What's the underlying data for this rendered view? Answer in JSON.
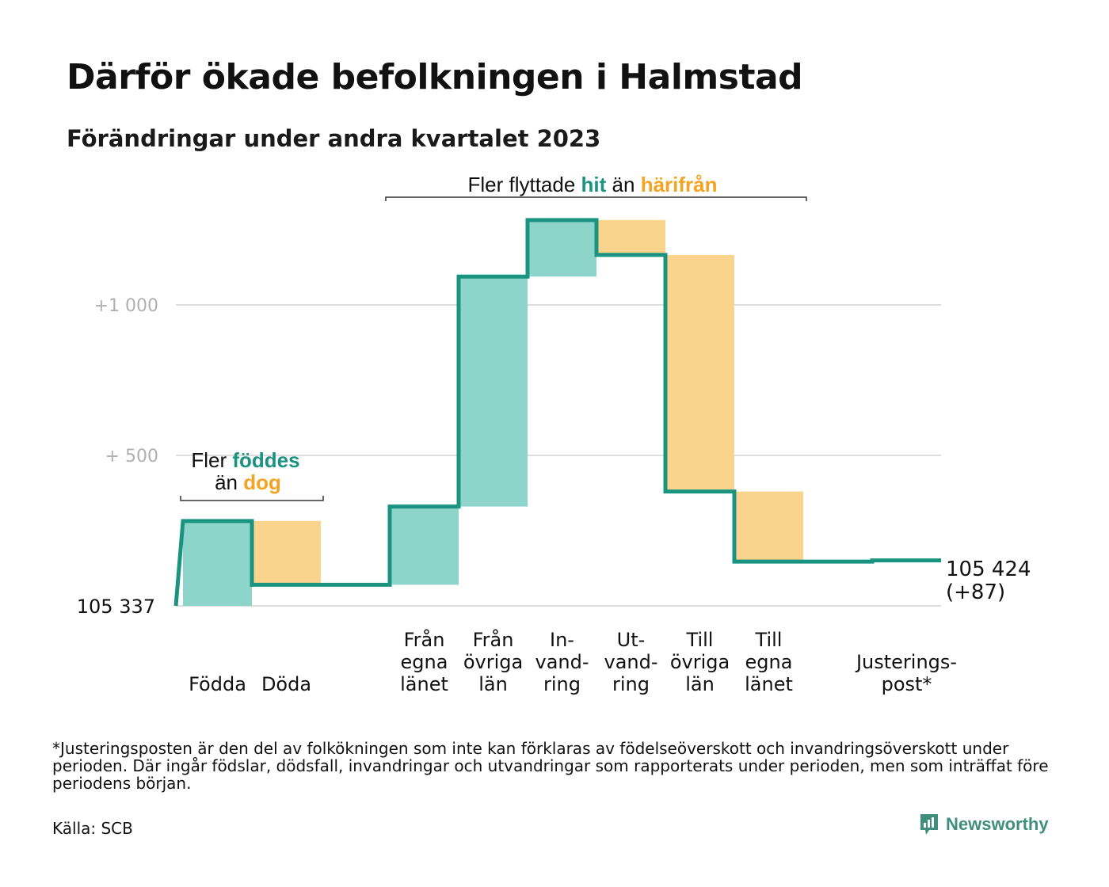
{
  "header": {
    "title": "Därför ökade befolkningen i Halmstad",
    "subtitle": "Förändringar under andra kvartalet 2023"
  },
  "colors": {
    "increase": "#8dd5cb",
    "decrease": "#fad48c",
    "line": "#1a9380",
    "highlight_increase": "#1a9380",
    "highlight_decrease": "#f5a322",
    "grid": "#dddddd",
    "tick": "#b0b0b0",
    "brand": "#3f8f7c"
  },
  "chart_data": {
    "type": "waterfall",
    "base_value": 105337,
    "base_label": "105 337",
    "end_value": 105424,
    "end_label": "105 424",
    "end_change_label": "(+87)",
    "yticks": [
      {
        "value": 500,
        "label": "+ 500"
      },
      {
        "value": 1000,
        "label": "+1 000"
      }
    ],
    "ylim": [
      0,
      1280
    ],
    "grid": true,
    "steps": [
      {
        "label": [
          "Födda"
        ],
        "delta": 282,
        "kind": "increase"
      },
      {
        "label": [
          "Döda"
        ],
        "delta": -212,
        "kind": "decrease"
      },
      {
        "label": [
          ""
        ],
        "delta": 0,
        "kind": "none"
      },
      {
        "label": [
          "Från",
          "egna",
          "länet"
        ],
        "delta": 260,
        "kind": "increase"
      },
      {
        "label": [
          "Från",
          "övriga",
          "län"
        ],
        "delta": 764,
        "kind": "increase"
      },
      {
        "label": [
          "In-",
          "vand-",
          "ring"
        ],
        "delta": 188,
        "kind": "increase"
      },
      {
        "label": [
          "Ut-",
          "vand-",
          "ring"
        ],
        "delta": -116,
        "kind": "decrease"
      },
      {
        "label": [
          "Till",
          "övriga",
          "län"
        ],
        "delta": -786,
        "kind": "decrease"
      },
      {
        "label": [
          "Till",
          "egna",
          "länet"
        ],
        "delta": -233,
        "kind": "decrease"
      },
      {
        "label": [
          ""
        ],
        "delta": 0,
        "kind": "none"
      },
      {
        "label": [
          "Justerings-",
          "post*"
        ],
        "delta": 4,
        "kind": "adjustment"
      }
    ],
    "annotations": {
      "births": {
        "line1": [
          "Fler ",
          "föddes"
        ],
        "line2": [
          "än ",
          "dog"
        ]
      },
      "migration": {
        "line": [
          "Fler flyttade ",
          "hit",
          " än ",
          "härifrån"
        ]
      }
    }
  },
  "footer": {
    "footnote": "*Justeringsposten är den del av folkökningen som inte kan förklaras av födelseöverskott och invandringsöverskott under perioden. Där ingår födslar, dödsfall, invandringar och utvandringar som rapporterats under perioden, men som inträffat före periodens början.",
    "source": "Källa: SCB",
    "brand": "Newsworthy",
    "brand_icon": "newsworthy-logo-icon"
  }
}
